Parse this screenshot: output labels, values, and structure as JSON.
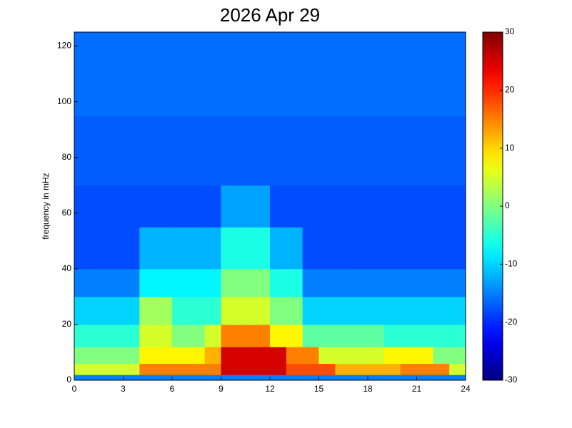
{
  "chart_data": {
    "type": "heatmap",
    "title": "2026 Apr 29",
    "ylabel": "frequency in mHz",
    "xlim": [
      0,
      24
    ],
    "xticks": [
      0,
      3,
      6,
      9,
      12,
      15,
      18,
      21,
      24
    ],
    "ylim": [
      0,
      125
    ],
    "yticks": [
      0,
      20,
      40,
      60,
      80,
      100,
      120
    ],
    "clim": [
      -30,
      30
    ],
    "cticks": [
      -30,
      -20,
      -10,
      0,
      10,
      20,
      30
    ],
    "colormap": "jet",
    "x_edges": [
      0,
      1,
      2,
      3,
      4,
      5,
      6,
      7,
      8,
      9,
      10,
      11,
      12,
      13,
      14,
      15,
      16,
      17,
      18,
      19,
      20,
      21,
      22,
      23,
      24
    ],
    "y_edges": [
      0,
      2,
      6,
      12,
      20,
      30,
      40,
      55,
      70,
      95,
      125
    ],
    "z": [
      [
        -15,
        -15,
        -15,
        -15,
        -15,
        -15,
        -15,
        -15,
        -15,
        -15,
        -15,
        -15,
        -15,
        -15,
        -15,
        -15,
        -15,
        -15,
        -15,
        -15,
        -15,
        -15,
        -15,
        -15
      ],
      [
        5,
        5,
        5,
        5,
        15,
        15,
        15,
        15,
        15,
        25,
        25,
        25,
        25,
        18,
        18,
        18,
        12,
        12,
        12,
        12,
        15,
        15,
        15,
        5
      ],
      [
        0,
        0,
        0,
        0,
        8,
        8,
        8,
        8,
        12,
        25,
        25,
        25,
        25,
        15,
        15,
        5,
        5,
        5,
        5,
        8,
        8,
        8,
        0,
        0
      ],
      [
        -5,
        -5,
        -5,
        -5,
        5,
        5,
        0,
        0,
        5,
        15,
        15,
        15,
        8,
        8,
        -2,
        -2,
        -2,
        -2,
        -2,
        -5,
        -5,
        -5,
        -5,
        -5
      ],
      [
        -10,
        -10,
        -10,
        -10,
        2,
        2,
        -5,
        -5,
        -5,
        5,
        5,
        5,
        0,
        0,
        -10,
        -10,
        -10,
        -10,
        -10,
        -10,
        -10,
        -10,
        -10,
        -10
      ],
      [
        -15,
        -15,
        -15,
        -15,
        -8,
        -8,
        -8,
        -8,
        -8,
        0,
        0,
        0,
        -6,
        -6,
        -15,
        -15,
        -15,
        -15,
        -15,
        -15,
        -15,
        -15,
        -15,
        -15
      ],
      [
        -18,
        -18,
        -18,
        -18,
        -12,
        -12,
        -12,
        -12,
        -12,
        -6,
        -6,
        -6,
        -12,
        -12,
        -18,
        -18,
        -18,
        -18,
        -18,
        -18,
        -18,
        -18,
        -18,
        -18
      ],
      [
        -18,
        -18,
        -18,
        -18,
        -18,
        -18,
        -18,
        -18,
        -18,
        -13,
        -13,
        -13,
        -18,
        -18,
        -18,
        -18,
        -18,
        -18,
        -18,
        -18,
        -18,
        -18,
        -18,
        -18
      ],
      [
        -17,
        -17,
        -17,
        -17,
        -17,
        -17,
        -17,
        -17,
        -17,
        -17,
        -17,
        -17,
        -17,
        -17,
        -17,
        -17,
        -17,
        -17,
        -17,
        -17,
        -17,
        -17,
        -17,
        -17
      ],
      [
        -16,
        -16,
        -16,
        -16,
        -16,
        -16,
        -16,
        -16,
        -16,
        -16,
        -16,
        -16,
        -16,
        -16,
        -16,
        -16,
        -16,
        -16,
        -16,
        -16,
        -16,
        -16,
        -16,
        -16
      ]
    ]
  }
}
